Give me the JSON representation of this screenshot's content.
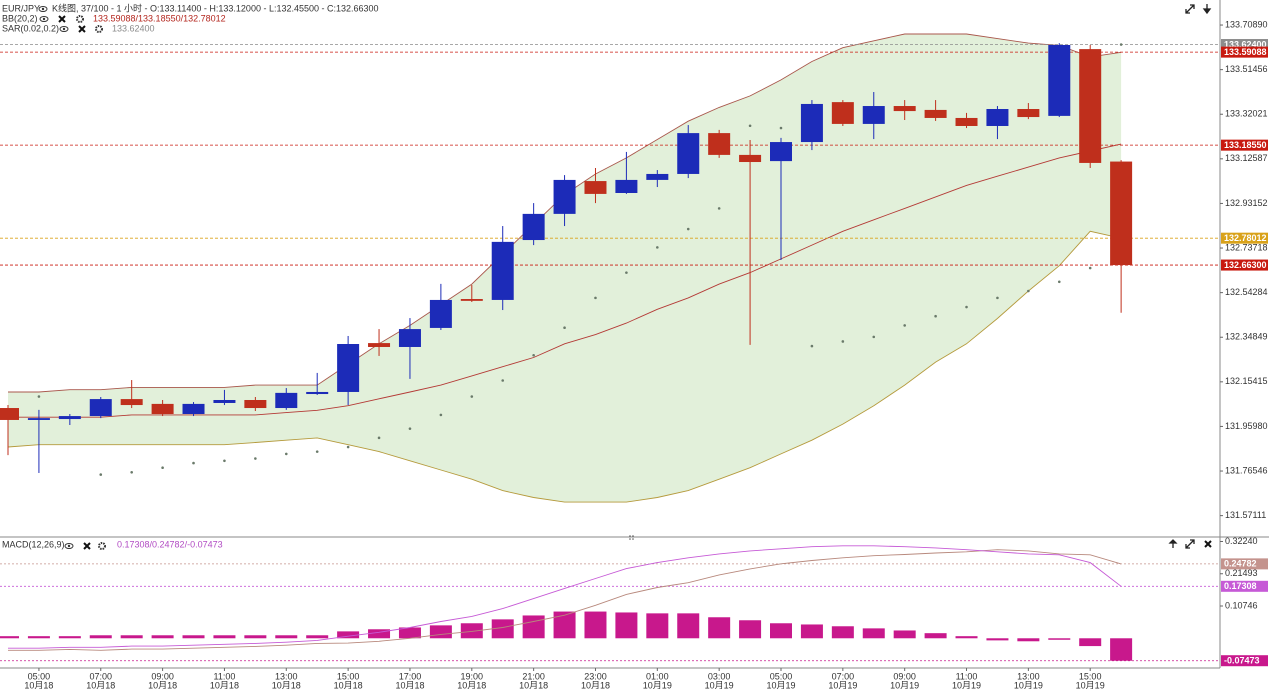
{
  "chart_data": [
    {
      "type": "candlestick",
      "title": "EUR/JPY",
      "subtitle": "K线图, 37/100 - 1 小时 - O:133.11400 - H:133.12000 - L:132.45500 - C:132.66300",
      "categories": [
        null,
        "05:00",
        null,
        "07:00",
        null,
        "09:00",
        null,
        "11:00",
        null,
        "13:00",
        null,
        "15:00",
        null,
        "17:00",
        null,
        "19:00",
        null,
        "21:00",
        null,
        "23:00",
        null,
        "01:00",
        null,
        "03:00",
        null,
        "05:00",
        null,
        "07:00",
        null,
        "09:00",
        null,
        "11:00",
        null,
        "13:00",
        null,
        "15:00",
        null
      ],
      "dates": [
        null,
        "10月18",
        null,
        "10月18",
        null,
        "10月18",
        null,
        "10月18",
        null,
        "10月18",
        null,
        "10月18",
        null,
        "10月18",
        null,
        "10月18",
        null,
        "10月18",
        null,
        "10月18",
        null,
        "10月19",
        null,
        "10月19",
        null,
        "10月19",
        null,
        "10月19",
        null,
        "10月19",
        null,
        "10月19",
        null,
        "10月19",
        null,
        "10月19",
        null
      ],
      "open": [
        132.04,
        131.988,
        131.992,
        132.005,
        132.079,
        132.058,
        132.014,
        132.062,
        132.075,
        132.04,
        132.101,
        132.11,
        132.323,
        132.306,
        132.389,
        132.515,
        132.511,
        132.772,
        132.886,
        133.029,
        132.977,
        133.034,
        133.06,
        133.238,
        133.143,
        133.116,
        133.199,
        133.373,
        133.278,
        133.356,
        133.339,
        133.304,
        133.269,
        133.343,
        133.313,
        133.604,
        133.114
      ],
      "high": [
        132.053,
        132.032,
        132.014,
        132.088,
        132.162,
        132.075,
        132.066,
        132.119,
        132.088,
        132.127,
        132.193,
        132.354,
        132.384,
        132.432,
        132.581,
        132.576,
        132.833,
        132.933,
        133.055,
        133.086,
        133.156,
        133.077,
        133.273,
        133.252,
        133.208,
        133.217,
        133.382,
        133.382,
        133.417,
        133.382,
        133.382,
        133.326,
        133.356,
        133.369,
        133.63,
        133.622,
        133.12
      ],
      "low": [
        131.835,
        131.757,
        131.966,
        131.996,
        132.04,
        132.005,
        132.005,
        132.053,
        132.027,
        132.032,
        132.097,
        132.053,
        132.267,
        132.167,
        132.38,
        132.502,
        132.467,
        132.75,
        132.833,
        132.933,
        132.973,
        133.003,
        133.042,
        133.13,
        132.315,
        132.685,
        133.164,
        133.269,
        133.212,
        133.295,
        133.291,
        133.26,
        133.212,
        133.299,
        133.308,
        133.086,
        132.455
      ],
      "close": [
        131.988,
        131.996,
        132.005,
        132.079,
        132.053,
        132.014,
        132.058,
        132.075,
        132.04,
        132.106,
        132.11,
        132.319,
        132.306,
        132.384,
        132.511,
        132.507,
        132.764,
        132.886,
        133.034,
        132.973,
        133.034,
        133.06,
        133.238,
        133.143,
        133.112,
        133.199,
        133.365,
        133.278,
        133.356,
        133.334,
        133.304,
        133.269,
        133.343,
        133.308,
        133.622,
        133.108,
        132.663
      ],
      "up_color": "#1c2bb8",
      "down_color": "#bf2f1c",
      "bollinger": {
        "label": "BB(20,2)",
        "values_text": "133.59088/133.18550/132.78012",
        "text_color": "#b3261e",
        "fill": "#e2f0da",
        "upper_color": "#a9574c",
        "middle_color": "#b43a36",
        "lower_color": "#b59a3c",
        "upper": [
          132.11,
          132.11,
          132.12,
          132.12,
          132.13,
          132.13,
          132.13,
          132.13,
          132.14,
          132.14,
          132.14,
          132.23,
          132.32,
          132.4,
          132.49,
          132.58,
          132.71,
          132.84,
          132.97,
          133.06,
          133.13,
          133.21,
          133.29,
          133.35,
          133.4,
          133.47,
          133.55,
          133.61,
          133.64,
          133.67,
          133.67,
          133.67,
          133.65,
          133.63,
          133.62,
          133.57,
          133.59
        ],
        "middle": [
          132.0,
          132.0,
          132.0,
          132.0,
          132.01,
          132.01,
          132.01,
          132.01,
          132.01,
          132.02,
          132.03,
          132.05,
          132.08,
          132.11,
          132.14,
          132.18,
          132.22,
          132.26,
          132.32,
          132.36,
          132.41,
          132.47,
          132.52,
          132.58,
          132.63,
          132.69,
          132.75,
          132.81,
          132.86,
          132.91,
          132.96,
          133.01,
          133.05,
          133.09,
          133.13,
          133.16,
          133.19
        ],
        "lower": [
          131.87,
          131.88,
          131.88,
          131.88,
          131.88,
          131.88,
          131.88,
          131.88,
          131.89,
          131.9,
          131.91,
          131.88,
          131.85,
          131.81,
          131.77,
          131.73,
          131.68,
          131.65,
          131.63,
          131.63,
          131.63,
          131.65,
          131.68,
          131.73,
          131.78,
          131.84,
          131.9,
          131.97,
          132.05,
          132.14,
          132.24,
          132.32,
          132.43,
          132.55,
          132.66,
          132.81,
          132.78
        ]
      },
      "sar": {
        "label": "SAR(0.02,0.2)",
        "values_text": "133.62400",
        "color": "#6a7a6a",
        "text_color": "#8a8a8a",
        "values": [
          null,
          132.09,
          null,
          131.75,
          131.76,
          131.78,
          131.8,
          131.81,
          131.82,
          131.84,
          131.85,
          131.87,
          131.91,
          131.95,
          132.01,
          132.09,
          132.16,
          132.27,
          132.39,
          132.52,
          132.63,
          132.74,
          132.82,
          132.91,
          133.27,
          133.26,
          132.31,
          132.33,
          132.35,
          132.4,
          132.44,
          132.48,
          132.52,
          132.55,
          132.59,
          132.65,
          133.624
        ]
      },
      "ylim": [
        131.478,
        133.818
      ],
      "yticks": [
        {
          "value": 133.7089,
          "label": "133.70890"
        },
        133.51456,
        133.32021,
        133.12587,
        132.93152,
        132.73718,
        132.54284,
        132.34849,
        132.15415,
        {
          "value": 131.9598,
          "label": "131.95980"
        },
        131.76546,
        131.57111
      ],
      "markers": [
        {
          "value": 133.624,
          "label": "133.62400",
          "color": "#8c8c8c"
        },
        {
          "value": 133.59088,
          "label": "133.59088",
          "color": "#c8190f"
        },
        {
          "value": 133.1855,
          "label": "133.18550",
          "color": "#c8190f"
        },
        {
          "value": 132.78012,
          "label": "132.78012",
          "color": "#d9a21a"
        },
        {
          "value": 132.663,
          "label": "132.66300",
          "color": "#c8190f"
        }
      ]
    },
    {
      "type": "macd",
      "label": "MACD(12,26,9)",
      "values_text": "0.17308/0.24782/-0.07473",
      "text_color": "#b24cc4",
      "histogram": [
        0.007,
        0.007,
        0.007,
        0.01,
        0.01,
        0.01,
        0.01,
        0.01,
        0.01,
        0.01,
        0.01,
        0.023,
        0.03,
        0.036,
        0.043,
        0.05,
        0.063,
        0.076,
        0.089,
        0.089,
        0.086,
        0.083,
        0.083,
        0.07,
        0.06,
        0.05,
        0.046,
        0.04,
        0.033,
        0.026,
        0.017,
        0.007,
        -0.007,
        -0.01,
        -0.003,
        -0.026,
        -0.07473
      ],
      "histogram_color": "#c8188c",
      "dif": [
        -0.033,
        -0.033,
        -0.03,
        -0.03,
        -0.026,
        -0.026,
        -0.023,
        -0.02,
        -0.017,
        -0.013,
        -0.007,
        0.007,
        0.02,
        0.036,
        0.056,
        0.073,
        0.099,
        0.132,
        0.166,
        0.199,
        0.232,
        0.252,
        0.268,
        0.281,
        0.291,
        0.298,
        0.305,
        0.308,
        0.308,
        0.305,
        0.301,
        0.295,
        0.288,
        0.281,
        0.278,
        0.252,
        0.17308
      ],
      "dif_color": "#c65ad6",
      "dea": [
        -0.04,
        -0.04,
        -0.037,
        -0.04,
        -0.036,
        -0.036,
        -0.033,
        -0.03,
        -0.027,
        -0.023,
        -0.017,
        -0.016,
        -0.01,
        0.0,
        0.013,
        0.023,
        0.036,
        0.056,
        0.077,
        0.11,
        0.146,
        0.169,
        0.185,
        0.211,
        0.231,
        0.248,
        0.259,
        0.268,
        0.275,
        0.279,
        0.284,
        0.288,
        0.295,
        0.291,
        0.281,
        0.278,
        0.24782
      ],
      "dea_color": "#b8897d",
      "ylim": [
        -0.099,
        0.334
      ],
      "yticks": [
        {
          "value": 0.3224,
          "label": "0.32240"
        },
        0.21493,
        0.10746
      ],
      "markers": [
        {
          "value": 0.24782,
          "label": "0.24782",
          "color": "#c4938d"
        },
        {
          "value": 0.17308,
          "label": "0.17308",
          "color": "#c65ad6"
        },
        {
          "value": -0.07473,
          "label": "-0.07473",
          "color": "#c8188c"
        }
      ]
    }
  ]
}
